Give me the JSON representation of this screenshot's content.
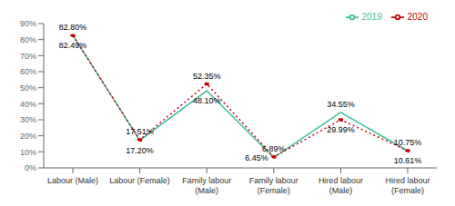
{
  "chart_data": {
    "type": "line",
    "categories": [
      "Labour (Male)",
      "Labour (Female)",
      "Family labour\n(Male)",
      "Family labour\n(Female)",
      "Hired labour\n(Male)",
      "Hired labour\n(Female)"
    ],
    "series": [
      {
        "name": "2019",
        "color": "#3dbf9b",
        "line_style": "solid",
        "values": [
          82.8,
          17.2,
          48.1,
          6.45,
          34.55,
          10.61
        ],
        "value_labels": [
          "82.80%",
          "17.20%",
          "48.10%",
          "6.45%",
          "34.55%",
          "10.61%"
        ]
      },
      {
        "name": "2020",
        "color": "#cc0000",
        "line_style": "dotted",
        "marker": "circle",
        "values": [
          82.49,
          17.51,
          52.35,
          6.89,
          29.99,
          10.75
        ],
        "value_labels": [
          "82.49%",
          "17.51%",
          "52.35%",
          "6.89%",
          "29.99%",
          "10.75%"
        ]
      }
    ],
    "ylim": [
      0,
      90
    ],
    "yticks": [
      {
        "value": 0,
        "label": "0%"
      },
      {
        "value": 10,
        "label": "10%"
      },
      {
        "value": 20,
        "label": "20%"
      },
      {
        "value": 30,
        "label": "30%"
      },
      {
        "value": 40,
        "label": "40%"
      },
      {
        "value": 50,
        "label": "50%"
      },
      {
        "value": 60,
        "label": "60%"
      },
      {
        "value": 70,
        "label": "70%"
      },
      {
        "value": 80,
        "label": "80%"
      },
      {
        "value": 90,
        "label": "90%"
      }
    ],
    "grid": false,
    "legend": "upper right",
    "data_labels": true
  }
}
